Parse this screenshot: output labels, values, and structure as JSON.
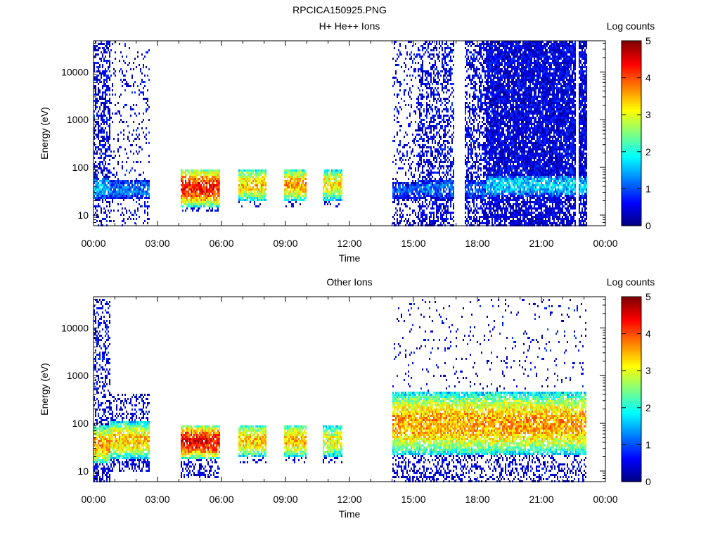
{
  "figure_title": "RPCICA150925.PNG",
  "chart_data": [
    {
      "type": "heatmap",
      "title": "H+ He++ Ions",
      "xlabel": "Time",
      "ylabel": "Energy (eV)",
      "x_ticks": [
        "00:00",
        "03:00",
        "06:00",
        "09:00",
        "12:00",
        "15:00",
        "18:00",
        "21:00",
        "00:00"
      ],
      "y_ticks": [
        "10",
        "100",
        "1000",
        "10000"
      ],
      "y_scale": "log",
      "xlim_hours": [
        0,
        24
      ],
      "ylim_eV": [
        6,
        45000
      ],
      "colorbar": {
        "label": "Log counts",
        "ticks": [
          "0",
          "1",
          "2",
          "3",
          "4",
          "5"
        ],
        "range": [
          0,
          5
        ],
        "colormap": "jet"
      },
      "segments": [
        {
          "t0": 0.0,
          "t1": 0.8,
          "band_lo": 22,
          "band_hi": 60,
          "peak": 1.6,
          "bg_top": 45000,
          "bg_dens": 0.55,
          "low_lo": 6,
          "low_dens": 0.3
        },
        {
          "t0": 0.8,
          "t1": 2.65,
          "band_lo": 22,
          "band_hi": 55,
          "peak": 1.2,
          "bg_top": 45000,
          "bg_dens": 0.12,
          "low_lo": 6,
          "low_dens": 0.15
        },
        {
          "t0": 4.1,
          "t1": 5.95,
          "band_lo": 15,
          "band_hi": 95,
          "peak": 4.3,
          "bg_top": 95,
          "bg_dens": 0.35,
          "low_lo": 12,
          "low_dens": 0.3
        },
        {
          "t0": 6.8,
          "t1": 8.1,
          "band_lo": 20,
          "band_hi": 95,
          "peak": 3.4,
          "bg_top": 95,
          "bg_dens": 0.3,
          "low_lo": 15,
          "low_dens": 0.2
        },
        {
          "t0": 8.95,
          "t1": 9.95,
          "band_lo": 20,
          "band_hi": 95,
          "peak": 3.6,
          "bg_top": 95,
          "bg_dens": 0.3,
          "low_lo": 15,
          "low_dens": 0.2
        },
        {
          "t0": 10.75,
          "t1": 11.65,
          "band_lo": 20,
          "band_hi": 95,
          "peak": 3.2,
          "bg_top": 95,
          "bg_dens": 0.3,
          "low_lo": 15,
          "low_dens": 0.2
        },
        {
          "t0": 14.0,
          "t1": 15.2,
          "band_lo": 22,
          "band_hi": 50,
          "peak": 1.0,
          "bg_top": 45000,
          "bg_dens": 0.18,
          "low_lo": 6,
          "low_dens": 0.3
        },
        {
          "t0": 15.2,
          "t1": 16.9,
          "band_lo": 22,
          "band_hi": 55,
          "peak": 1.1,
          "bg_top": 45000,
          "bg_dens": 0.45,
          "low_lo": 6,
          "low_dens": 0.55
        },
        {
          "t0": 17.4,
          "t1": 18.4,
          "band_lo": 22,
          "band_hi": 55,
          "peak": 1.1,
          "bg_top": 45000,
          "bg_dens": 0.55,
          "low_lo": 6,
          "low_dens": 0.55
        },
        {
          "t0": 18.4,
          "t1": 22.6,
          "band_lo": 25,
          "band_hi": 70,
          "peak": 1.7,
          "bg_top": 45000,
          "bg_dens": 0.9,
          "low_lo": 6,
          "low_dens": 0.8
        },
        {
          "t0": 22.75,
          "t1": 23.1,
          "band_lo": 25,
          "band_hi": 65,
          "peak": 1.6,
          "bg_top": 45000,
          "bg_dens": 0.85,
          "low_lo": 6,
          "low_dens": 0.8
        }
      ]
    },
    {
      "type": "heatmap",
      "title": "Other Ions",
      "xlabel": "Time",
      "ylabel": "Energy (eV)",
      "x_ticks": [
        "00:00",
        "03:00",
        "06:00",
        "09:00",
        "12:00",
        "15:00",
        "18:00",
        "21:00",
        "00:00"
      ],
      "y_ticks": [
        "10",
        "100",
        "1000",
        "10000"
      ],
      "y_scale": "log",
      "xlim_hours": [
        0,
        24
      ],
      "ylim_eV": [
        6,
        45000
      ],
      "colorbar": {
        "label": "Log counts",
        "ticks": [
          "0",
          "1",
          "2",
          "3",
          "4",
          "5"
        ],
        "range": [
          0,
          5
        ],
        "colormap": "jet"
      },
      "segments": [
        {
          "t0": 0.0,
          "t1": 0.8,
          "band_lo": 14,
          "band_hi": 90,
          "peak": 3.6,
          "bg_top": 40000,
          "bg_dens": 0.35,
          "low_lo": 6,
          "low_dens": 0.5
        },
        {
          "t0": 0.8,
          "t1": 2.65,
          "band_lo": 18,
          "band_hi": 110,
          "peak": 3.4,
          "bg_top": 400,
          "bg_dens": 0.35,
          "low_lo": 10,
          "low_dens": 0.4
        },
        {
          "t0": 4.1,
          "t1": 5.95,
          "band_lo": 18,
          "band_hi": 95,
          "peak": 4.4,
          "bg_top": 95,
          "bg_dens": 0.3,
          "low_lo": 7,
          "low_dens": 0.35
        },
        {
          "t0": 6.8,
          "t1": 8.1,
          "band_lo": 20,
          "band_hi": 95,
          "peak": 3.4,
          "bg_top": 95,
          "bg_dens": 0.3,
          "low_lo": 14,
          "low_dens": 0.25
        },
        {
          "t0": 8.95,
          "t1": 9.95,
          "band_lo": 20,
          "band_hi": 95,
          "peak": 3.5,
          "bg_top": 95,
          "bg_dens": 0.3,
          "low_lo": 14,
          "low_dens": 0.25
        },
        {
          "t0": 10.75,
          "t1": 11.65,
          "band_lo": 20,
          "band_hi": 95,
          "peak": 3.1,
          "bg_top": 95,
          "bg_dens": 0.3,
          "low_lo": 14,
          "low_dens": 0.25
        },
        {
          "t0": 14.0,
          "t1": 23.1,
          "band_lo": 22,
          "band_hi": 450,
          "peak": 3.6,
          "bg_top": 40000,
          "bg_dens": 0.05,
          "low_lo": 6,
          "low_dens": 0.35
        }
      ]
    }
  ]
}
